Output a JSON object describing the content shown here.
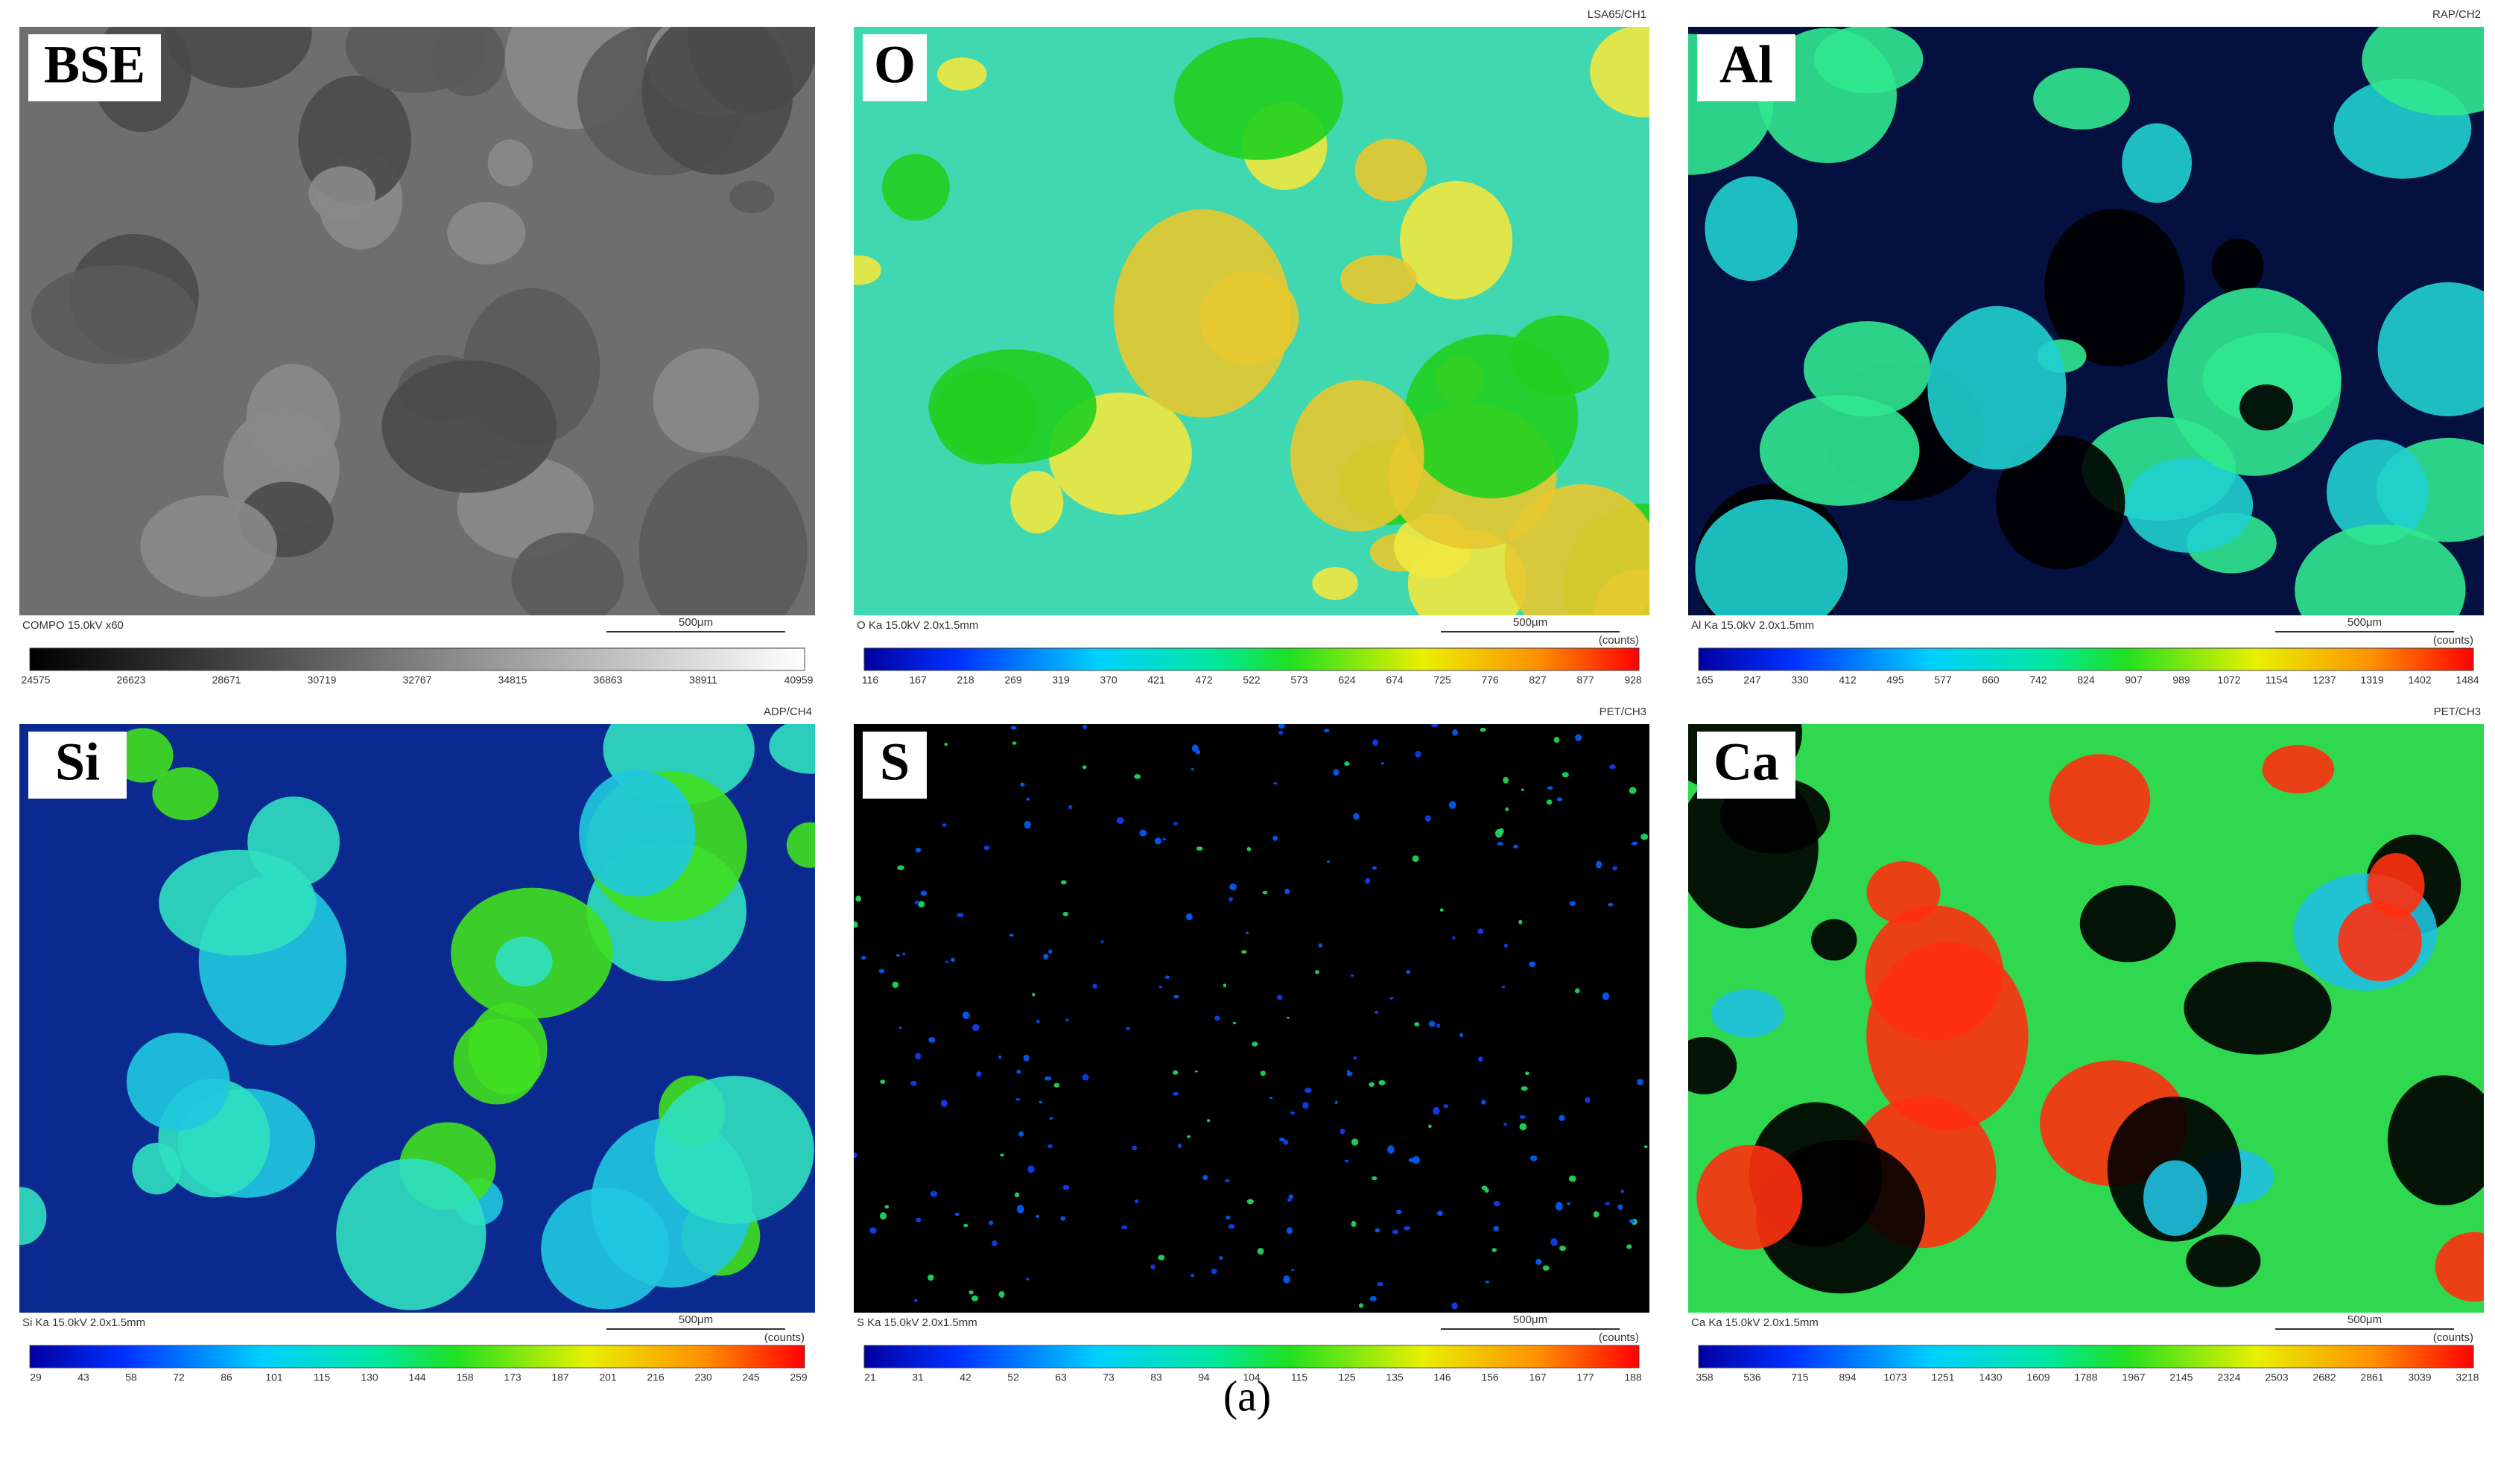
{
  "panels": [
    {
      "label": "BSE",
      "footer": "COMPO 15.0kV x60",
      "scale_bar": "500μm",
      "colorbar": {
        "ticks": [
          24575,
          26623,
          28671,
          30719,
          32767,
          34815,
          36863,
          38911,
          40959
        ]
      }
    },
    {
      "label": "O",
      "header": "LSA65/CH1",
      "footer": "O Ka 15.0kV 2.0x1.5mm",
      "scale_bar": "500μm",
      "colorbar": {
        "unit": "(counts)",
        "ticks": [
          116,
          167,
          218,
          269,
          319,
          370,
          421,
          472,
          522,
          573,
          624,
          674,
          725,
          776,
          827,
          877,
          928
        ]
      }
    },
    {
      "label": "Al",
      "header": "RAP/CH2",
      "footer": "Al Ka 15.0kV 2.0x1.5mm",
      "scale_bar": "500μm",
      "colorbar": {
        "unit": "(counts)",
        "ticks": [
          165,
          247,
          330,
          412,
          495,
          577,
          660,
          742,
          824,
          907,
          989,
          1072,
          1154,
          1237,
          1319,
          1402,
          1484
        ]
      }
    },
    {
      "label": "Si",
      "header": "ADP/CH4",
      "footer": "Si Ka 15.0kV 2.0x1.5mm",
      "scale_bar": "500μm",
      "colorbar": {
        "unit": "(counts)",
        "ticks": [
          29,
          43,
          58,
          72,
          86,
          101,
          115,
          130,
          144,
          158,
          173,
          187,
          201,
          216,
          230,
          245,
          259
        ]
      }
    },
    {
      "label": "S",
      "header": "PET/CH3",
      "footer": "S Ka 15.0kV 2.0x1.5mm",
      "scale_bar": "500μm",
      "colorbar": {
        "unit": "(counts)",
        "ticks": [
          21,
          31,
          42,
          52,
          63,
          73,
          83,
          94,
          104,
          115,
          125,
          135,
          146,
          156,
          167,
          177,
          188
        ]
      }
    },
    {
      "label": "Ca",
      "header": "PET/CH3",
      "footer": "Ca Ka 15.0kV 2.0x1.5mm",
      "scale_bar": "500μm",
      "colorbar": {
        "unit": "(counts)",
        "ticks": [
          358,
          536,
          715,
          894,
          1073,
          1251,
          1430,
          1609,
          1788,
          1967,
          2145,
          2324,
          2503,
          2682,
          2861,
          3039,
          3218
        ]
      }
    }
  ],
  "caption": "(a)"
}
